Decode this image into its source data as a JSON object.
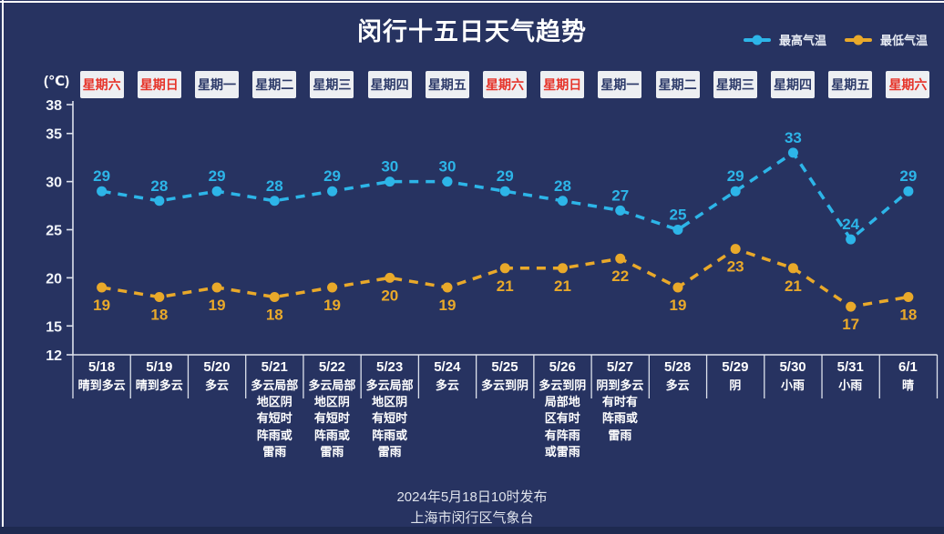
{
  "title": "闵行十五日天气趋势",
  "legend": [
    {
      "label": "最高气温",
      "color": "#2db5e8"
    },
    {
      "label": "最低气温",
      "color": "#e9a92a"
    }
  ],
  "footer": {
    "line1": "2024年5月18日10时发布",
    "line2": "上海市闵行区气象台"
  },
  "colors": {
    "background": "#273361",
    "high_temp": "#2db5e8",
    "low_temp": "#e9a92a",
    "weekend_text": "#e63329",
    "weekday_text": "#2c3a69",
    "weekday_box_bg": "#edeff2",
    "axis": "#dde2ec"
  },
  "chart_data": {
    "type": "line",
    "title": "闵行十五日天气趋势",
    "ylabel": "(℃)",
    "xlabel": "",
    "ylim": [
      12,
      38
    ],
    "yticks": [
      38,
      35,
      30,
      25,
      20,
      15,
      12
    ],
    "grid": false,
    "legend_position": "top-right",
    "line_style": "dashed",
    "categories": [
      "5/18",
      "5/19",
      "5/20",
      "5/21",
      "5/22",
      "5/23",
      "5/24",
      "5/25",
      "5/26",
      "5/27",
      "5/28",
      "5/29",
      "5/30",
      "5/31",
      "6/1"
    ],
    "weekdays": [
      {
        "label": "星期六",
        "weekend": true
      },
      {
        "label": "星期日",
        "weekend": true
      },
      {
        "label": "星期一",
        "weekend": false
      },
      {
        "label": "星期二",
        "weekend": false
      },
      {
        "label": "星期三",
        "weekend": false
      },
      {
        "label": "星期四",
        "weekend": false
      },
      {
        "label": "星期五",
        "weekend": false
      },
      {
        "label": "星期六",
        "weekend": true
      },
      {
        "label": "星期日",
        "weekend": true
      },
      {
        "label": "星期一",
        "weekend": false
      },
      {
        "label": "星期二",
        "weekend": false
      },
      {
        "label": "星期三",
        "weekend": false
      },
      {
        "label": "星期四",
        "weekend": false
      },
      {
        "label": "星期五",
        "weekend": false
      },
      {
        "label": "星期六",
        "weekend": true
      }
    ],
    "weather": [
      "晴到多云",
      "晴到多云",
      "多云",
      "多云局部\n地区阴\n有短时\n阵雨或\n雷雨",
      "多云局部\n地区阴\n有短时\n阵雨或\n雷雨",
      "多云局部\n地区阴\n有短时\n阵雨或\n雷雨",
      "多云",
      "多云到阴",
      "多云到阴\n局部地\n区有时\n有阵雨\n或雷雨",
      "阴到多云\n有时有\n阵雨或\n雷雨",
      "多云",
      "阴",
      "小雨",
      "小雨",
      "晴"
    ],
    "series": [
      {
        "name": "最高气温",
        "color": "#2db5e8",
        "values": [
          29,
          28,
          29,
          28,
          29,
          30,
          30,
          29,
          28,
          27,
          25,
          29,
          33,
          24,
          29
        ]
      },
      {
        "name": "最低气温",
        "color": "#e9a92a",
        "values": [
          19,
          18,
          19,
          18,
          19,
          20,
          19,
          21,
          21,
          22,
          19,
          23,
          21,
          17,
          18
        ]
      }
    ]
  }
}
